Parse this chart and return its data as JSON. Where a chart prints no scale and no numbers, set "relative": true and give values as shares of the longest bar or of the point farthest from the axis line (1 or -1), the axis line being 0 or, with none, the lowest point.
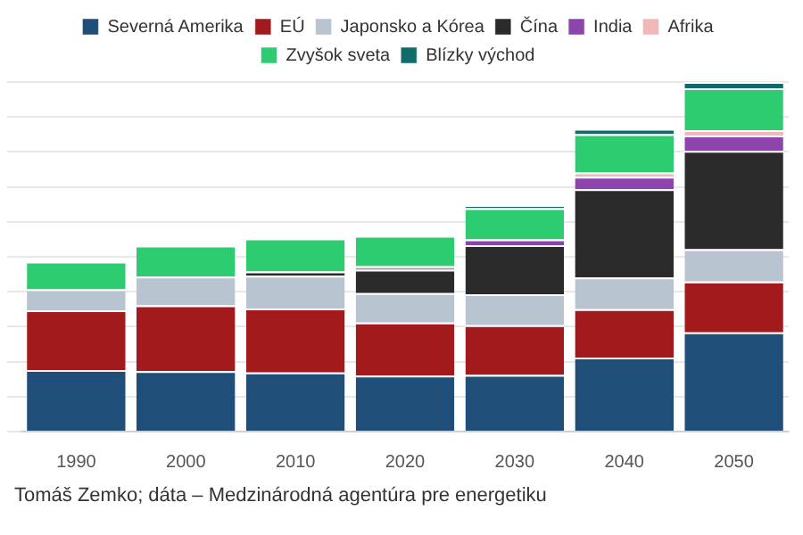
{
  "chart_data": {
    "type": "bar",
    "stacked": true,
    "relative": true,
    "grid": "y",
    "legend": "top",
    "categories": [
      "1990",
      "2000",
      "2010",
      "2020",
      "2030",
      "2040",
      "2050"
    ],
    "series": [
      {
        "name": "Severná Amerika",
        "color": "#1f4e79",
        "values": [
          0.176,
          0.173,
          0.169,
          0.16,
          0.162,
          0.212,
          0.284
        ]
      },
      {
        "name": "EÚ",
        "color": "#a31a1c",
        "values": [
          0.171,
          0.188,
          0.183,
          0.152,
          0.142,
          0.138,
          0.145
        ]
      },
      {
        "name": "Japonsko a Kórea",
        "color": "#b8c4d0",
        "values": [
          0.06,
          0.082,
          0.094,
          0.084,
          0.089,
          0.091,
          0.093
        ]
      },
      {
        "name": "Čína",
        "color": "#2b2b2b",
        "values": [
          0,
          0,
          0.012,
          0.067,
          0.14,
          0.252,
          0.281
        ]
      },
      {
        "name": "India",
        "color": "#8e44ad",
        "values": [
          0,
          0,
          0,
          0.006,
          0.017,
          0.036,
          0.044
        ]
      },
      {
        "name": "Afrika",
        "color": "#f0b8b8",
        "values": [
          0,
          0,
          0,
          0.004,
          null,
          0.012,
          0.015
        ]
      },
      {
        "name": "Zvyšok sveta",
        "color": "#2ecc71",
        "values": [
          0.079,
          0.089,
          0.094,
          0.087,
          0.089,
          0.11,
          0.12
        ]
      },
      {
        "name": "Blízky východ",
        "color": "#116b6b",
        "values": [
          0,
          0,
          0,
          null,
          0.008,
          0.015,
          0.018
        ]
      }
    ],
    "annotations": [
      "Tomáš Zemko; dáta – Medzinárodná agentúra pre energetiku"
    ]
  }
}
